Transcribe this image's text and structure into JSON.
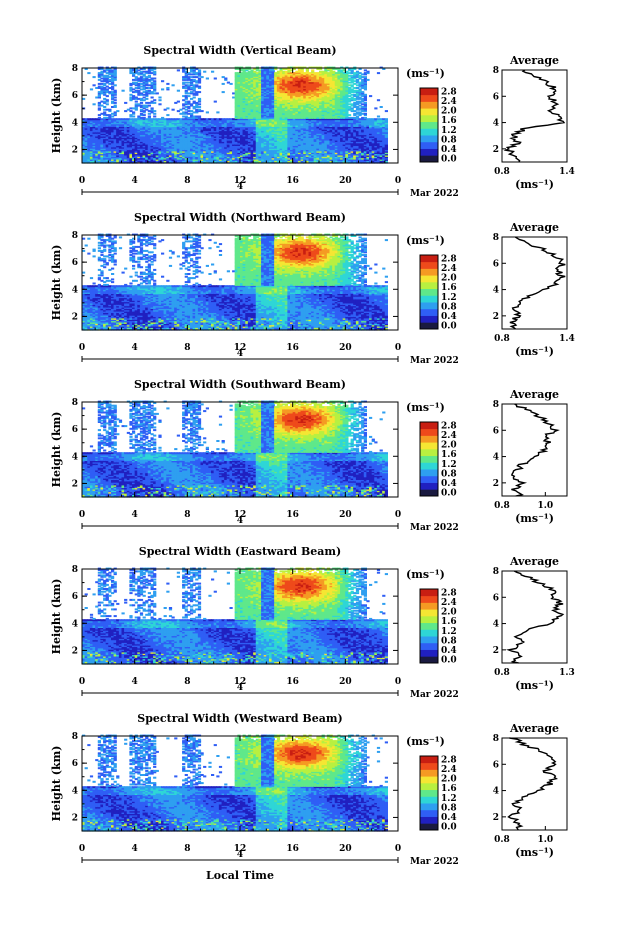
{
  "figure": {
    "xlabel": "Local Time",
    "date_label": "Mar 2022",
    "day_label": "4"
  },
  "colorbar": {
    "unit": "(ms⁻¹)",
    "ticks": [
      "2.8",
      "2.4",
      "2.0",
      "1.6",
      "1.2",
      "0.8",
      "0.4",
      "0.0"
    ],
    "colors": [
      "#1a1a40",
      "#2020c0",
      "#2f5ef5",
      "#2e9ff0",
      "#2ed6d6",
      "#5fe88a",
      "#b8f040",
      "#f5e633",
      "#f59a23",
      "#ee4a1b",
      "#c81e12"
    ]
  },
  "chart_data": [
    {
      "type": "heatmap",
      "title": "Spectral Width (Vertical Beam)",
      "ylabel": "Height (km)",
      "xlim": [
        0,
        24
      ],
      "ylim": [
        1,
        8
      ],
      "x_ticks": [
        "0",
        "4",
        "8",
        "12",
        "16",
        "20",
        "0"
      ],
      "y_ticks": [
        "8",
        "6",
        "4",
        "2"
      ],
      "value_range": [
        0,
        2.8
      ],
      "average_profile": {
        "title": "Average",
        "xlabel": "(ms⁻¹)",
        "x_ticks": [
          "0.8",
          "1.4"
        ],
        "xlim": [
          0.8,
          1.4
        ],
        "height_km": [
          1.0,
          1.5,
          2.0,
          2.5,
          3.0,
          3.5,
          4.0,
          4.5,
          5.0,
          5.5,
          6.0,
          6.5,
          7.0,
          7.5,
          8.0
        ],
        "values": [
          0.95,
          0.9,
          0.85,
          0.95,
          0.9,
          1.0,
          1.35,
          1.3,
          1.25,
          1.3,
          1.25,
          1.3,
          1.22,
          1.1,
          0.98
        ]
      }
    },
    {
      "type": "heatmap",
      "title": "Spectral Width (Northward Beam)",
      "ylabel": "Height (km)",
      "xlim": [
        0,
        24
      ],
      "ylim": [
        1,
        8
      ],
      "x_ticks": [
        "0",
        "4",
        "8",
        "12",
        "16",
        "20",
        "0"
      ],
      "y_ticks": [
        "8",
        "6",
        "4",
        "2"
      ],
      "value_range": [
        0,
        2.8
      ],
      "average_profile": {
        "title": "Average",
        "xlabel": "(ms⁻¹)",
        "x_ticks": [
          "0.8",
          "1.4"
        ],
        "xlim": [
          0.8,
          1.4
        ],
        "height_km": [
          1.0,
          1.5,
          2.0,
          2.5,
          3.0,
          3.5,
          4.0,
          4.5,
          5.0,
          5.5,
          6.0,
          6.5,
          7.0,
          7.5,
          8.0
        ],
        "values": [
          0.92,
          0.88,
          0.95,
          0.9,
          0.95,
          1.05,
          1.2,
          1.3,
          1.35,
          1.32,
          1.36,
          1.3,
          1.2,
          1.05,
          0.95
        ]
      }
    },
    {
      "type": "heatmap",
      "title": "Spectral Width (Southward Beam)",
      "ylabel": "Height (km)",
      "xlim": [
        0,
        24
      ],
      "ylim": [
        1,
        8
      ],
      "x_ticks": [
        "0",
        "4",
        "8",
        "12",
        "16",
        "20",
        "0"
      ],
      "y_ticks": [
        "8",
        "6",
        "4",
        "2"
      ],
      "value_range": [
        0,
        2.8
      ],
      "average_profile": {
        "title": "Average",
        "xlabel": "(ms⁻¹)",
        "x_ticks": [
          "0.8",
          "1.0"
        ],
        "xlim": [
          0.8,
          1.1
        ],
        "height_km": [
          1.0,
          1.5,
          2.0,
          2.5,
          3.0,
          3.5,
          4.0,
          4.5,
          5.0,
          5.5,
          6.0,
          6.5,
          7.0,
          7.5,
          8.0
        ],
        "values": [
          0.88,
          0.86,
          0.9,
          0.84,
          0.87,
          0.9,
          0.96,
          1.0,
          1.02,
          1.0,
          1.04,
          1.02,
          0.98,
          0.92,
          0.86
        ]
      }
    },
    {
      "type": "heatmap",
      "title": "Spectral Width (Eastward Beam)",
      "ylabel": "Height (km)",
      "xlim": [
        0,
        24
      ],
      "ylim": [
        1,
        8
      ],
      "x_ticks": [
        "0",
        "4",
        "8",
        "12",
        "16",
        "20",
        "0"
      ],
      "y_ticks": [
        "8",
        "6",
        "4",
        "2"
      ],
      "value_range": [
        0,
        2.8
      ],
      "average_profile": {
        "title": "Average",
        "xlabel": "(ms⁻¹)",
        "x_ticks": [
          "0.8",
          "1.3"
        ],
        "xlim": [
          0.8,
          1.3
        ],
        "height_km": [
          1.0,
          1.5,
          2.0,
          2.5,
          3.0,
          3.5,
          4.0,
          4.5,
          5.0,
          5.5,
          6.0,
          6.5,
          7.0,
          7.5,
          8.0
        ],
        "values": [
          0.9,
          0.92,
          0.88,
          0.95,
          0.9,
          1.0,
          1.15,
          1.25,
          1.22,
          1.25,
          1.2,
          1.22,
          1.1,
          1.0,
          0.9
        ]
      }
    },
    {
      "type": "heatmap",
      "title": "Spectral Width (Westward Beam)",
      "ylabel": "Height (km)",
      "xlim": [
        0,
        24
      ],
      "ylim": [
        1,
        8
      ],
      "x_ticks": [
        "0",
        "4",
        "8",
        "12",
        "16",
        "20",
        "0"
      ],
      "y_ticks": [
        "8",
        "6",
        "4",
        "2"
      ],
      "value_range": [
        0,
        2.8
      ],
      "average_profile": {
        "title": "Average",
        "xlabel": "(ms⁻¹)",
        "x_ticks": [
          "0.8",
          "1.0"
        ],
        "xlim": [
          0.8,
          1.1
        ],
        "height_km": [
          1.0,
          1.5,
          2.0,
          2.5,
          3.0,
          3.5,
          4.0,
          4.5,
          5.0,
          5.5,
          6.0,
          6.5,
          7.0,
          7.5,
          8.0
        ],
        "values": [
          0.86,
          0.88,
          0.84,
          0.88,
          0.86,
          0.9,
          0.98,
          1.02,
          1.04,
          1.0,
          1.05,
          1.02,
          0.98,
          0.9,
          0.85
        ]
      }
    }
  ]
}
